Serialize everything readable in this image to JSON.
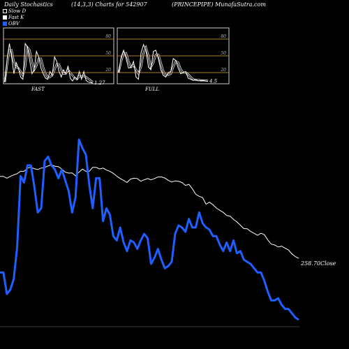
{
  "header": {
    "title": "Daily Stochastics",
    "params": "(14,3,3) Charts for 542907",
    "symbol": "(PRINCEPIPE) MunafaSutra.com"
  },
  "legend": [
    {
      "label": "Slow  D",
      "color": "#ffffff",
      "style": "outline"
    },
    {
      "label": "Fast  K",
      "color": "#ffffff",
      "style": "solid"
    },
    {
      "label": "OBV",
      "color": "#1f5fff",
      "style": "solid"
    }
  ],
  "panels": {
    "fast": {
      "label": "FAST",
      "last_value": "1.27"
    },
    "full": {
      "label": "FULL",
      "last_value": "4.5"
    },
    "levels": [
      "80",
      "50",
      "20"
    ]
  },
  "colors": {
    "background": "#000000",
    "price": "#ffffff",
    "obv": "#1f5fff",
    "level_line": "#b07a1a"
  },
  "chart_data": [
    {
      "type": "line",
      "name": "FAST",
      "ylim": [
        0,
        100
      ],
      "levels": [
        80,
        50,
        20
      ],
      "series": [
        {
          "name": "Fast K",
          "values": [
            3,
            45,
            72,
            48,
            18,
            38,
            28,
            12,
            8,
            72,
            66,
            42,
            18,
            25,
            58,
            48,
            28,
            18,
            10,
            8,
            22,
            15,
            48,
            40,
            22,
            12,
            25,
            18,
            32,
            10,
            5,
            12,
            8,
            22,
            8,
            22,
            6,
            3,
            2,
            1.27
          ]
        },
        {
          "name": "Slow  D",
          "values": [
            3,
            35,
            60,
            60,
            40,
            30,
            28,
            22,
            15,
            30,
            65,
            60,
            40,
            25,
            32,
            45,
            45,
            30,
            18,
            12,
            12,
            15,
            25,
            35,
            35,
            25,
            18,
            18,
            25,
            20,
            15,
            10,
            8,
            14,
            13,
            14,
            12,
            9,
            6,
            3
          ]
        }
      ]
    },
    {
      "type": "line",
      "name": "FULL",
      "ylim": [
        0,
        100
      ],
      "levels": [
        80,
        50,
        20
      ],
      "series": [
        {
          "name": "Fast K",
          "values": [
            20,
            48,
            60,
            45,
            28,
            30,
            40,
            12,
            8,
            55,
            70,
            60,
            30,
            25,
            58,
            60,
            45,
            25,
            15,
            12,
            20,
            22,
            45,
            42,
            28,
            18,
            20,
            22,
            10,
            8,
            6,
            8,
            5,
            6,
            6,
            5,
            4.5
          ]
        },
        {
          "name": "Slow  D",
          "values": [
            20,
            40,
            55,
            55,
            40,
            30,
            33,
            25,
            18,
            30,
            55,
            65,
            50,
            30,
            38,
            52,
            52,
            38,
            22,
            16,
            16,
            18,
            30,
            40,
            38,
            26,
            20,
            20,
            17,
            12,
            8,
            7,
            7,
            6,
            6,
            6,
            5
          ]
        }
      ]
    },
    {
      "type": "line",
      "name": "Price and OBV",
      "series": [
        {
          "name": "Close",
          "label": "258.70Close",
          "values": [
            49.2,
            49.2,
            48.2,
            49.2,
            50.0,
            50.7,
            52.0,
            52.0,
            53.8,
            54.3,
            53.4,
            53.0,
            53.8,
            54.1,
            55.0,
            55.6,
            54.8,
            54.6,
            53.3,
            51.5,
            51.0,
            51.1,
            49.5,
            51.5,
            53.2,
            52.0,
            52.0,
            54.2,
            54.2,
            53.3,
            53.8,
            52.7,
            52.0,
            50.9,
            49.3,
            48.0,
            47.0,
            45.8,
            47.7,
            48.2,
            48.0,
            46.5,
            47.3,
            48.0,
            47.3,
            48.0,
            48.9,
            48.9,
            48.3,
            47.0,
            46.1,
            46.7,
            46.5,
            45.8,
            44.2,
            44.8,
            42.4,
            39.3,
            38.2,
            37.4,
            33.8,
            34.9,
            33.5,
            31.7,
            30.4,
            29.3,
            27.6,
            27.2,
            25.4,
            24.0,
            22.2,
            20.3,
            20.2,
            18.7,
            17.7,
            16.6,
            17.7,
            16.9,
            14.0,
            11.7,
            11.2,
            10.1,
            10.6,
            9.5,
            8.5,
            6.3,
            4.8,
            3.8
          ]
        },
        {
          "name": "OBV",
          "values": [
            38,
            38,
            28,
            30,
            35,
            50,
            83,
            80,
            88,
            88,
            78,
            66,
            68,
            90,
            92,
            88,
            86,
            82,
            86,
            81,
            76,
            66,
            73,
            100,
            96,
            93,
            79,
            68,
            82,
            82,
            62,
            68,
            65,
            55,
            53,
            59,
            52,
            48,
            53,
            52,
            49,
            53,
            56,
            54,
            42,
            45,
            49,
            44,
            40,
            41,
            43,
            56,
            60,
            59,
            57,
            63,
            59,
            59,
            66,
            61,
            59,
            58,
            55,
            55,
            51,
            48,
            52,
            48,
            53,
            47,
            48,
            44,
            43,
            42,
            40,
            38,
            38,
            34,
            29,
            25,
            25,
            26,
            23,
            21,
            21,
            19,
            17,
            16
          ]
        }
      ]
    }
  ]
}
